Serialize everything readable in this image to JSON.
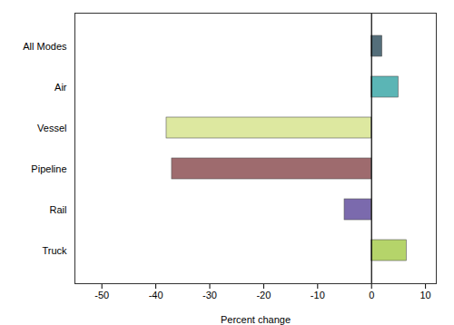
{
  "chart_data": {
    "type": "bar",
    "orientation": "horizontal",
    "categories": [
      "All Modes",
      "Air",
      "Vessel",
      "Pipeline",
      "Rail",
      "Truck"
    ],
    "values": [
      2.0,
      5.0,
      -38.0,
      -37.0,
      -5.0,
      6.5
    ],
    "colors": [
      "#546e7a",
      "#5bb5b5",
      "#dde8a0",
      "#9e6b6e",
      "#7b6aad",
      "#b5d46a"
    ],
    "xlabel": "Percent change",
    "xlim": [
      -55,
      12
    ],
    "xticks": [
      -50,
      -40,
      -30,
      -20,
      -10,
      0,
      10
    ],
    "grid": false
  }
}
